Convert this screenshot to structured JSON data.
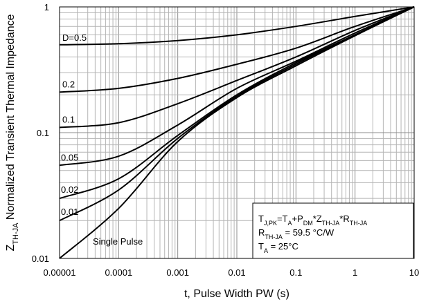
{
  "chart_data": {
    "type": "line",
    "title": "",
    "xlabel": "t, Pulse Width PW (s)",
    "ylabel_main": "Z",
    "ylabel_sub": "TH-JA",
    "ylabel_rest": " Normalized Transient Thermal Impedance",
    "x_scale": "log",
    "y_scale": "log",
    "xlim": [
      1e-05,
      10
    ],
    "ylim": [
      0.01,
      1
    ],
    "grid": true,
    "x_ticks": [
      {
        "value": 1e-05,
        "label": "0.00001"
      },
      {
        "value": 0.0001,
        "label": "0.0001"
      },
      {
        "value": 0.001,
        "label": "0.001"
      },
      {
        "value": 0.01,
        "label": "0.01"
      },
      {
        "value": 0.1,
        "label": "0.1"
      },
      {
        "value": 1,
        "label": "1"
      },
      {
        "value": 10,
        "label": "10"
      }
    ],
    "y_ticks": [
      {
        "value": 0.01,
        "label": "0.01"
      },
      {
        "value": 0.1,
        "label": "0.1"
      },
      {
        "value": 1,
        "label": "1"
      }
    ],
    "x": [
      1e-05,
      0.0001,
      0.001,
      0.01,
      0.1,
      1,
      10
    ],
    "series": [
      {
        "name": "D=0.5",
        "label": "D=0.5",
        "values": [
          0.5,
          0.51,
          0.54,
          0.6,
          0.7,
          0.84,
          1.0
        ]
      },
      {
        "name": "D=0.2",
        "label": "0.2",
        "values": [
          0.21,
          0.225,
          0.27,
          0.35,
          0.47,
          0.7,
          1.0
        ]
      },
      {
        "name": "D=0.1",
        "label": "0.1",
        "values": [
          0.11,
          0.12,
          0.17,
          0.26,
          0.4,
          0.65,
          1.0
        ]
      },
      {
        "name": "D=0.05",
        "label": "0.05",
        "values": [
          0.055,
          0.065,
          0.115,
          0.225,
          0.37,
          0.62,
          1.0
        ]
      },
      {
        "name": "D=0.02",
        "label": "0.02",
        "values": [
          0.03,
          0.043,
          0.095,
          0.2,
          0.36,
          0.6,
          1.0
        ]
      },
      {
        "name": "D=0.01",
        "label": "0.01",
        "values": [
          0.02,
          0.035,
          0.09,
          0.195,
          0.35,
          0.6,
          1.0
        ]
      },
      {
        "name": "Single Pulse",
        "label": "Single Pulse",
        "values": [
          0.01,
          0.025,
          0.085,
          0.19,
          0.34,
          0.59,
          1.0
        ]
      }
    ],
    "annotation": {
      "line1_parts": [
        {
          "t": "T",
          "s": "n"
        },
        {
          "t": "J,PK",
          "s": "sub"
        },
        {
          "t": "=T",
          "s": "n"
        },
        {
          "t": "A",
          "s": "sub"
        },
        {
          "t": "+P",
          "s": "n"
        },
        {
          "t": "DM",
          "s": "sub"
        },
        {
          "t": "*Z",
          "s": "n"
        },
        {
          "t": "TH-JA",
          "s": "sub"
        },
        {
          "t": "*R",
          "s": "n"
        },
        {
          "t": "TH-JA",
          "s": "sub"
        }
      ],
      "line2_parts": [
        {
          "t": "R",
          "s": "n"
        },
        {
          "t": "TH-JA",
          "s": "sub"
        },
        {
          "t": " = 59.5 °C/W",
          "s": "n"
        }
      ],
      "line3_parts": [
        {
          "t": "T",
          "s": "n"
        },
        {
          "t": "A",
          "s": "sub"
        },
        {
          "t": " = 25°C",
          "s": "n"
        }
      ]
    }
  }
}
